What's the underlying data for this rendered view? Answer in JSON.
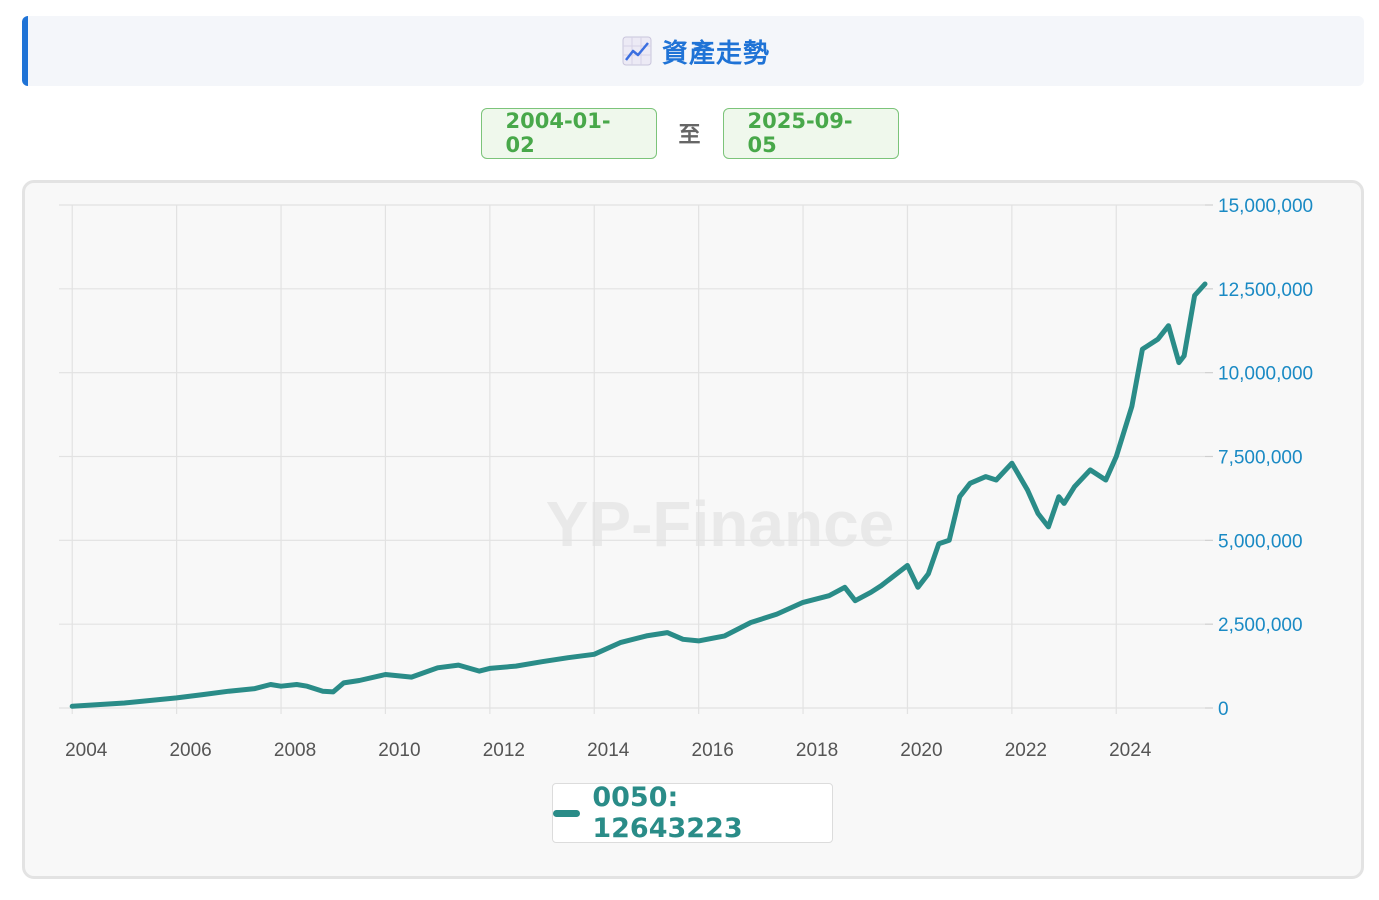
{
  "header": {
    "title": "資產走勢",
    "icon": "chart-increasing-icon"
  },
  "date_range": {
    "start": "2004-01-02",
    "separator": "至",
    "end": "2025-09-05"
  },
  "watermark": "YP-Finance",
  "legend": {
    "label": "0050: 12643223"
  },
  "colors": {
    "accent": "#1f73d6",
    "line": "#2a8c88",
    "axis_label_y": "#1a8ac4",
    "date_green": "#48a84a"
  },
  "chart_data": {
    "type": "line",
    "title": "",
    "xlabel": "",
    "ylabel": "",
    "xlim": [
      2003.9,
      2025.7
    ],
    "ylim": [
      0,
      15000000
    ],
    "x_ticks": [
      "2004",
      "2006",
      "2008",
      "2010",
      "2012",
      "2014",
      "2016",
      "2018",
      "2020",
      "2022",
      "2024"
    ],
    "y_ticks": [
      "0",
      "2,500,000",
      "5,000,000",
      "7,500,000",
      "10,000,000",
      "12,500,000",
      "15,000,000"
    ],
    "grid": true,
    "legend_position": "bottom-center",
    "series": [
      {
        "name": "0050",
        "x": [
          2004.0,
          2005.0,
          2006.0,
          2006.5,
          2007.0,
          2007.5,
          2007.8,
          2008.0,
          2008.3,
          2008.5,
          2008.8,
          2009.0,
          2009.2,
          2009.5,
          2010.0,
          2010.5,
          2011.0,
          2011.4,
          2011.8,
          2012.0,
          2012.5,
          2013.0,
          2013.5,
          2014.0,
          2014.5,
          2015.0,
          2015.4,
          2015.7,
          2016.0,
          2016.5,
          2017.0,
          2017.5,
          2018.0,
          2018.5,
          2018.8,
          2019.0,
          2019.3,
          2019.5,
          2020.0,
          2020.2,
          2020.4,
          2020.6,
          2020.8,
          2021.0,
          2021.2,
          2021.5,
          2021.7,
          2022.0,
          2022.3,
          2022.5,
          2022.7,
          2022.9,
          2023.0,
          2023.2,
          2023.5,
          2023.8,
          2024.0,
          2024.3,
          2024.5,
          2024.8,
          2025.0,
          2025.2,
          2025.3,
          2025.5,
          2025.7
        ],
        "values": [
          50000,
          150000,
          300000,
          400000,
          500000,
          580000,
          700000,
          650000,
          700000,
          650000,
          500000,
          480000,
          750000,
          820000,
          1000000,
          920000,
          1200000,
          1280000,
          1100000,
          1180000,
          1250000,
          1380000,
          1500000,
          1600000,
          1950000,
          2150000,
          2250000,
          2050000,
          2000000,
          2150000,
          2550000,
          2800000,
          3150000,
          3350000,
          3600000,
          3200000,
          3450000,
          3650000,
          4250000,
          3600000,
          4000000,
          4900000,
          5000000,
          6300000,
          6700000,
          6900000,
          6800000,
          7300000,
          6500000,
          5800000,
          5400000,
          6300000,
          6100000,
          6600000,
          7100000,
          6800000,
          7500000,
          9000000,
          10700000,
          11000000,
          11400000,
          10300000,
          10500000,
          12300000,
          12643223
        ]
      }
    ]
  }
}
